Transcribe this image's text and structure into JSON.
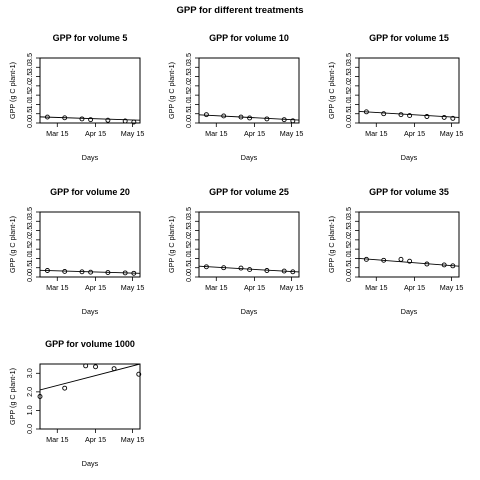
{
  "figure": {
    "title": "GPP for different treatments"
  },
  "chart_data": [
    {
      "type": "scatter",
      "title": "GPP for volume 5",
      "xlabel": "Days",
      "ylabel": "GPP (g C plant-1)",
      "x_ticks": [
        "Mar 15",
        "Apr 15",
        "May 15"
      ],
      "ylim": [
        0,
        3.5
      ],
      "y_ticks": [
        "0.0",
        "0.5",
        "1.0",
        "1.5",
        "2.0",
        "2.5",
        "3.0",
        "3.5"
      ],
      "x": [
        "2013-03-07",
        "2013-03-21",
        "2013-04-04",
        "2013-04-11",
        "2013-04-25",
        "2013-05-09",
        "2013-05-16"
      ],
      "y": [
        0.32,
        0.28,
        0.22,
        0.18,
        0.15,
        0.11,
        0.05
      ],
      "trend": [
        0.33,
        0.15
      ]
    },
    {
      "type": "scatter",
      "title": "GPP for volume 10",
      "xlabel": "Days",
      "ylabel": "GPP (g C plant-1)",
      "x_ticks": [
        "Mar 15",
        "Apr 15",
        "May 15"
      ],
      "ylim": [
        0,
        3.5
      ],
      "y_ticks": [
        "0.0",
        "0.5",
        "1.0",
        "1.5",
        "2.0",
        "2.5",
        "3.0",
        "3.5"
      ],
      "x": [
        "2013-03-07",
        "2013-03-21",
        "2013-04-04",
        "2013-04-11",
        "2013-04-25",
        "2013-05-09",
        "2013-05-16"
      ],
      "y": [
        0.45,
        0.38,
        0.32,
        0.27,
        0.22,
        0.18,
        0.12
      ],
      "trend": [
        0.44,
        0.16
      ]
    },
    {
      "type": "scatter",
      "title": "GPP for volume 15",
      "xlabel": "Days",
      "ylabel": "GPP (g C plant-1)",
      "x_ticks": [
        "Mar 15",
        "Apr 15",
        "May 15"
      ],
      "ylim": [
        0,
        3.5
      ],
      "y_ticks": [
        "0.0",
        "0.5",
        "1.0",
        "1.5",
        "2.0",
        "2.5",
        "3.0",
        "3.5"
      ],
      "x": [
        "2013-03-07",
        "2013-03-21",
        "2013-04-04",
        "2013-04-11",
        "2013-04-25",
        "2013-05-09",
        "2013-05-16"
      ],
      "y": [
        0.6,
        0.5,
        0.45,
        0.4,
        0.35,
        0.3,
        0.25
      ],
      "trend": [
        0.62,
        0.3
      ]
    },
    {
      "type": "scatter",
      "title": "GPP for volume 20",
      "xlabel": "Days",
      "ylabel": "GPP (g C plant-1)",
      "x_ticks": [
        "Mar 15",
        "Apr 15",
        "May 15"
      ],
      "ylim": [
        0,
        3.5
      ],
      "y_ticks": [
        "0.0",
        "0.5",
        "1.0",
        "1.5",
        "2.0",
        "2.5",
        "3.0",
        "3.5"
      ],
      "x": [
        "2013-03-07",
        "2013-03-21",
        "2013-04-04",
        "2013-04-11",
        "2013-04-25",
        "2013-05-09",
        "2013-05-16"
      ],
      "y": [
        0.35,
        0.3,
        0.28,
        0.26,
        0.24,
        0.22,
        0.2
      ],
      "trend": [
        0.36,
        0.2
      ]
    },
    {
      "type": "scatter",
      "title": "GPP for volume 25",
      "xlabel": "Days",
      "ylabel": "GPP (g C plant-1)",
      "x_ticks": [
        "Mar 15",
        "Apr 15",
        "May 15"
      ],
      "ylim": [
        0,
        3.5
      ],
      "y_ticks": [
        "0.0",
        "0.5",
        "1.0",
        "1.5",
        "2.0",
        "2.5",
        "3.0",
        "3.5"
      ],
      "x": [
        "2013-03-07",
        "2013-03-21",
        "2013-04-04",
        "2013-04-11",
        "2013-04-25",
        "2013-05-09",
        "2013-05-16"
      ],
      "y": [
        0.55,
        0.5,
        0.48,
        0.4,
        0.35,
        0.32,
        0.28
      ],
      "trend": [
        0.58,
        0.27
      ]
    },
    {
      "type": "scatter",
      "title": "GPP for volume 35",
      "xlabel": "Days",
      "ylabel": "GPP (g C plant-1)",
      "x_ticks": [
        "Mar 15",
        "Apr 15",
        "May 15"
      ],
      "ylim": [
        0,
        3.5
      ],
      "y_ticks": [
        "0.0",
        "0.5",
        "1.0",
        "1.5",
        "2.0",
        "2.5",
        "3.0",
        "3.5"
      ],
      "x": [
        "2013-03-07",
        "2013-03-21",
        "2013-04-04",
        "2013-04-11",
        "2013-04-25",
        "2013-05-09",
        "2013-05-16"
      ],
      "y": [
        0.95,
        0.9,
        0.95,
        0.85,
        0.7,
        0.65,
        0.6
      ],
      "trend": [
        1.0,
        0.58
      ]
    },
    {
      "type": "scatter",
      "title": "GPP for volume 1000",
      "xlabel": "Days",
      "ylabel": "GPP (g C plant-1)",
      "x_ticks": [
        "Mar 15",
        "Apr 15",
        "May 15"
      ],
      "ylim": [
        0,
        3.5
      ],
      "y_ticks": [
        "0.0",
        "1.0",
        "2.0",
        "3.0"
      ],
      "x": [
        "2013-03-01",
        "2013-03-21",
        "2013-04-07",
        "2013-04-15",
        "2013-04-30",
        "2013-05-20"
      ],
      "y": [
        1.75,
        2.2,
        3.4,
        3.35,
        3.25,
        2.95
      ],
      "trend": [
        2.1,
        3.5
      ]
    }
  ]
}
